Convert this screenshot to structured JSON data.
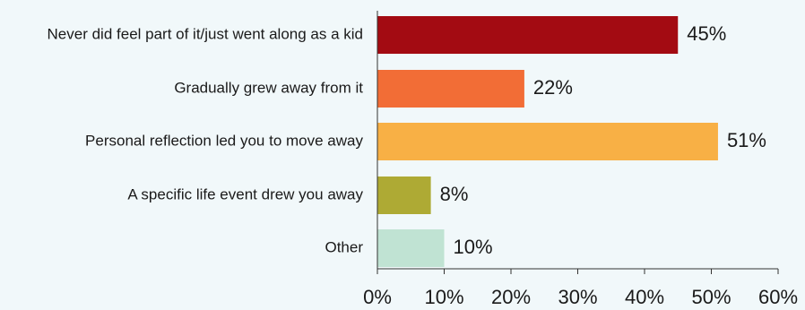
{
  "chart_data": {
    "type": "bar",
    "orientation": "horizontal",
    "categories": [
      "Never did feel part of it/just went along as a kid",
      "Gradually grew away from it",
      "Personal reflection led you to move away",
      "A specific life event drew you away",
      "Other"
    ],
    "values": [
      45,
      22,
      51,
      8,
      10
    ],
    "data_labels": [
      "45%",
      "22%",
      "51%",
      "8%",
      "10%"
    ],
    "colors": [
      "#a30b12",
      "#f26d36",
      "#f8b045",
      "#aeaa34",
      "#c0e3d3"
    ],
    "xlim": [
      0,
      60
    ],
    "x_ticks": [
      0,
      10,
      20,
      30,
      40,
      50,
      60
    ],
    "x_tick_labels": [
      "0%",
      "10%",
      "20%",
      "30%",
      "40%",
      "50%",
      "60%"
    ],
    "grid": false,
    "title": "",
    "xlabel": "",
    "ylabel": ""
  }
}
